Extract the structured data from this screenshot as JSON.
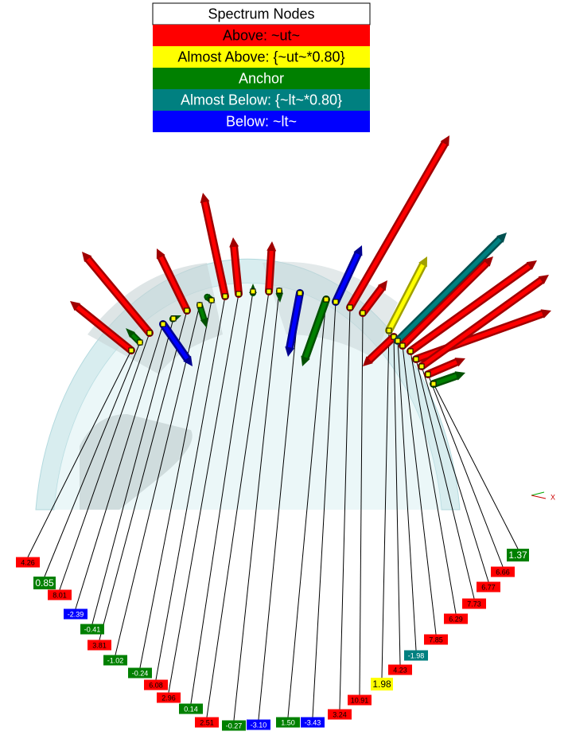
{
  "legend": {
    "title": "Spectrum Nodes",
    "entries": [
      {
        "label": "Above: ~ut~",
        "color": "#ff0000",
        "text_color": "#000000"
      },
      {
        "label": "Almost Above: {~ut~*0.80}",
        "color": "#ffff00",
        "text_color": "#000000"
      },
      {
        "label": "Anchor",
        "color": "#008000",
        "text_color": "#ffffff"
      },
      {
        "label": "Almost Below: {~lt~*0.80}",
        "color": "#008080",
        "text_color": "#ffffff"
      },
      {
        "label": "Below: ~lt~",
        "color": "#0000ff",
        "text_color": "#ffffff"
      }
    ]
  },
  "nodes": [
    {
      "label": "4.26",
      "color": "#ff0000"
    },
    {
      "label": "0.85",
      "color": "#008000"
    },
    {
      "label": "8.01",
      "color": "#ff0000"
    },
    {
      "label": "-2.39",
      "color": "#0000ff"
    },
    {
      "label": "-0.41",
      "color": "#008000"
    },
    {
      "label": "3.81",
      "color": "#ff0000"
    },
    {
      "label": "-1.02",
      "color": "#008000"
    },
    {
      "label": "-0.24",
      "color": "#008000"
    },
    {
      "label": "6.08",
      "color": "#ff0000"
    },
    {
      "label": "2.96",
      "color": "#ff0000"
    },
    {
      "label": "0.14",
      "color": "#008000"
    },
    {
      "label": "2.51",
      "color": "#ff0000"
    },
    {
      "label": "-0.27",
      "color": "#008000"
    },
    {
      "label": "-3.10",
      "color": "#0000ff"
    },
    {
      "label": "1.50",
      "color": "#008000"
    },
    {
      "label": "-3.43",
      "color": "#0000ff"
    },
    {
      "label": "3.24",
      "color": "#ff0000"
    },
    {
      "label": "10.91",
      "color": "#ff0000"
    },
    {
      "label": "1.98",
      "color": "#ffff00"
    },
    {
      "label": "4.23",
      "color": "#ff0000"
    },
    {
      "label": "-1.98",
      "color": "#008080"
    },
    {
      "label": "7.85",
      "color": "#ff0000"
    },
    {
      "label": "6.29",
      "color": "#ff0000"
    },
    {
      "label": "7.73",
      "color": "#ff0000"
    },
    {
      "label": "6.77",
      "color": "#ff0000"
    },
    {
      "label": "6.66",
      "color": "#ff0000"
    },
    {
      "label": "1.37",
      "color": "#008000"
    }
  ],
  "axis_label": "X"
}
